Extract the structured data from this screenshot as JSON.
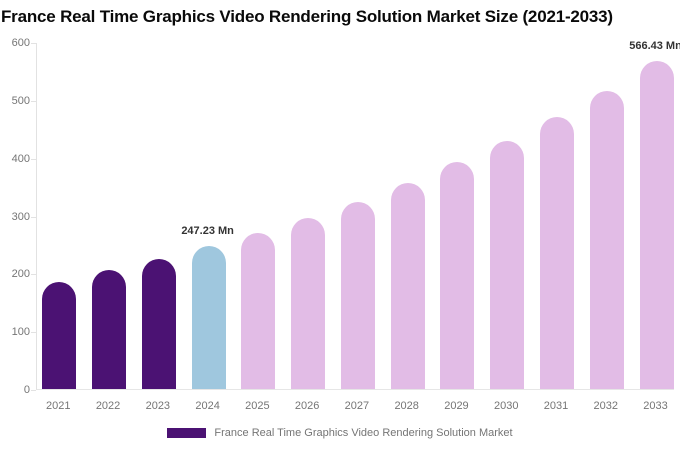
{
  "title": "France Real Time Graphics Video Rendering Solution Market Size (2021-2033)",
  "legend": {
    "label": "France Real Time Graphics Video Rendering Solution Market"
  },
  "colors": {
    "historical_bar": "#4B1273",
    "current_bar": "#9FC7DE",
    "forecast_bar": "#E2BCE6",
    "axis_line": "#e2e2e2",
    "axis_text": "#757575",
    "annotation_text": "#333333"
  },
  "chart_data": {
    "type": "bar",
    "title": "France Real Time Graphics Video Rendering Solution Market Size (2021-2033)",
    "categories": [
      "2021",
      "2022",
      "2023",
      "2024",
      "2025",
      "2026",
      "2027",
      "2028",
      "2029",
      "2030",
      "2031",
      "2032",
      "2033"
    ],
    "series": [
      {
        "name": "France Real Time Graphics Video Rendering Solution Market",
        "values": [
          185,
          205,
          225,
          247.23,
          270,
          296,
          324,
          357,
          392,
          429,
          470,
          515,
          566.43
        ]
      }
    ],
    "segments": {
      "historical_years": [
        "2021",
        "2022",
        "2023"
      ],
      "current_year": "2024",
      "forecast_years": [
        "2025",
        "2026",
        "2027",
        "2028",
        "2029",
        "2030",
        "2031",
        "2032",
        "2033"
      ]
    },
    "annotations": [
      {
        "category": "2024",
        "text": "247.23 Mn"
      },
      {
        "category": "2033",
        "text": "566.43 Mn"
      }
    ],
    "xlabel": "",
    "ylabel": "",
    "unit": "Mn",
    "ylim": [
      0,
      600
    ],
    "yticks": [
      0,
      100,
      200,
      300,
      400,
      500,
      600
    ],
    "grid": false,
    "legend_position": "bottom"
  }
}
